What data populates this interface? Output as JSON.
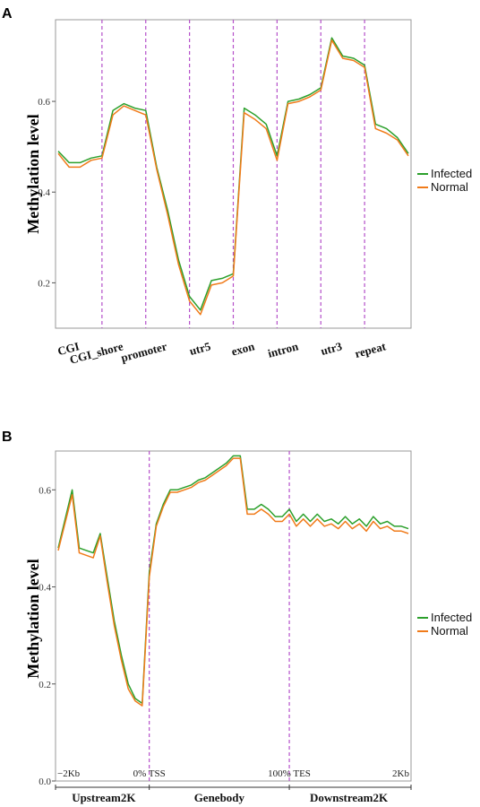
{
  "colors": {
    "infected": "#2ca02c",
    "normal": "#f07b1a",
    "divider": "#b44fc9"
  },
  "panels": {
    "a": {
      "letter": "A",
      "ylabel": "Methylation level"
    },
    "b": {
      "letter": "B",
      "ylabel": "Methylation level"
    }
  },
  "legend": {
    "infected": "Infected",
    "normal": "Normal"
  },
  "chart_data": [
    {
      "type": "line",
      "ylabel": "Methylation level",
      "ylim": [
        0.1,
        0.78
      ],
      "yticks": [
        "0.2",
        "0.4",
        "0.6"
      ],
      "categories": [
        "CGI",
        "CGI_shore",
        "promoter",
        "utr5",
        "exon",
        "intron",
        "utr3",
        "repeat"
      ],
      "x": [
        0,
        0.25,
        0.5,
        0.75,
        1,
        1.25,
        1.5,
        1.75,
        2,
        2.25,
        2.5,
        2.75,
        3,
        3.25,
        3.5,
        3.75,
        4,
        4.25,
        4.5,
        4.75,
        5,
        5.25,
        5.5,
        5.75,
        6,
        6.25,
        6.5,
        6.75,
        7,
        7.25,
        7.5,
        7.75,
        8
      ],
      "series": [
        {
          "name": "Infected",
          "values": [
            0.49,
            0.465,
            0.465,
            0.475,
            0.48,
            0.58,
            0.595,
            0.585,
            0.58,
            0.455,
            0.36,
            0.25,
            0.17,
            0.14,
            0.205,
            0.21,
            0.22,
            0.585,
            0.57,
            0.55,
            0.48,
            0.6,
            0.605,
            0.615,
            0.63,
            0.74,
            0.7,
            0.695,
            0.68,
            0.55,
            0.54,
            0.52,
            0.485
          ]
        },
        {
          "name": "Normal",
          "values": [
            0.485,
            0.455,
            0.455,
            0.47,
            0.475,
            0.57,
            0.59,
            0.58,
            0.57,
            0.45,
            0.35,
            0.24,
            0.16,
            0.13,
            0.195,
            0.2,
            0.215,
            0.575,
            0.56,
            0.54,
            0.47,
            0.595,
            0.6,
            0.61,
            0.625,
            0.735,
            0.695,
            0.69,
            0.675,
            0.54,
            0.53,
            0.515,
            0.48
          ]
        }
      ]
    },
    {
      "type": "line",
      "ylabel": "Methylation level",
      "ylim": [
        0.0,
        0.68
      ],
      "yticks": [
        "0.0",
        "0.2",
        "0.4",
        "0.6"
      ],
      "x_ticks": [
        "−2Kb",
        "0% TSS",
        "100% TES",
        "2Kb"
      ],
      "regions": [
        "Upstream2K",
        "Genebody",
        "Downstream2K"
      ],
      "x": [
        0,
        4,
        6,
        10,
        12,
        14,
        16,
        18,
        20,
        22,
        24,
        26,
        28,
        30,
        32,
        34,
        36,
        38,
        40,
        42,
        44,
        46,
        48,
        50,
        52,
        54,
        56,
        58,
        60,
        62,
        64,
        66,
        68,
        70,
        72,
        74,
        76,
        78,
        80,
        82,
        84,
        86,
        88,
        90,
        92,
        94,
        96,
        98,
        100
      ],
      "series": [
        {
          "name": "Infected",
          "values": [
            0.48,
            0.6,
            0.48,
            0.47,
            0.51,
            0.42,
            0.33,
            0.26,
            0.2,
            0.17,
            0.16,
            0.43,
            0.53,
            0.57,
            0.6,
            0.6,
            0.605,
            0.61,
            0.62,
            0.625,
            0.635,
            0.645,
            0.655,
            0.67,
            0.67,
            0.56,
            0.56,
            0.57,
            0.56,
            0.545,
            0.545,
            0.56,
            0.535,
            0.55,
            0.535,
            0.55,
            0.535,
            0.54,
            0.53,
            0.545,
            0.53,
            0.54,
            0.525,
            0.545,
            0.53,
            0.535,
            0.525,
            0.525,
            0.52
          ]
        },
        {
          "name": "Normal",
          "values": [
            0.475,
            0.59,
            0.47,
            0.46,
            0.505,
            0.41,
            0.32,
            0.25,
            0.19,
            0.165,
            0.155,
            0.42,
            0.525,
            0.565,
            0.595,
            0.595,
            0.6,
            0.605,
            0.615,
            0.62,
            0.63,
            0.64,
            0.65,
            0.665,
            0.665,
            0.55,
            0.55,
            0.56,
            0.55,
            0.535,
            0.535,
            0.55,
            0.525,
            0.54,
            0.525,
            0.54,
            0.525,
            0.53,
            0.52,
            0.535,
            0.52,
            0.53,
            0.515,
            0.535,
            0.52,
            0.525,
            0.515,
            0.515,
            0.51
          ]
        }
      ]
    }
  ]
}
